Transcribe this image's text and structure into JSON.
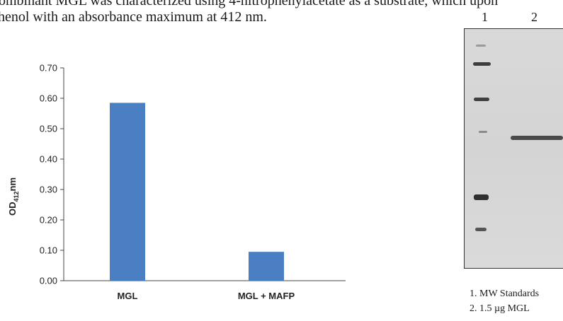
{
  "text": {
    "line1": "ombinant MGL was characterized using 4-nitrophenylacetate as a substrate, which upon",
    "line2": "henol with an absorbance maximum at 412 nm."
  },
  "chart_data": {
    "type": "bar",
    "categories": [
      "MGL",
      "MGL + MAFP"
    ],
    "values": [
      0.585,
      0.095
    ],
    "ylim": [
      0,
      0.7
    ],
    "yticks": [
      "0.00",
      "0.10",
      "0.20",
      "0.30",
      "0.40",
      "0.50",
      "0.60",
      "0.70"
    ],
    "ylabel_main": "OD",
    "ylabel_sub": "412",
    "ylabel_unit": "nm",
    "bar_color": "#4a7fc4",
    "grid": false
  },
  "gel": {
    "lane_labels": [
      "1",
      "2"
    ],
    "legend": [
      "1.  MW Standards",
      "2.  1.5 µg MGL"
    ]
  }
}
